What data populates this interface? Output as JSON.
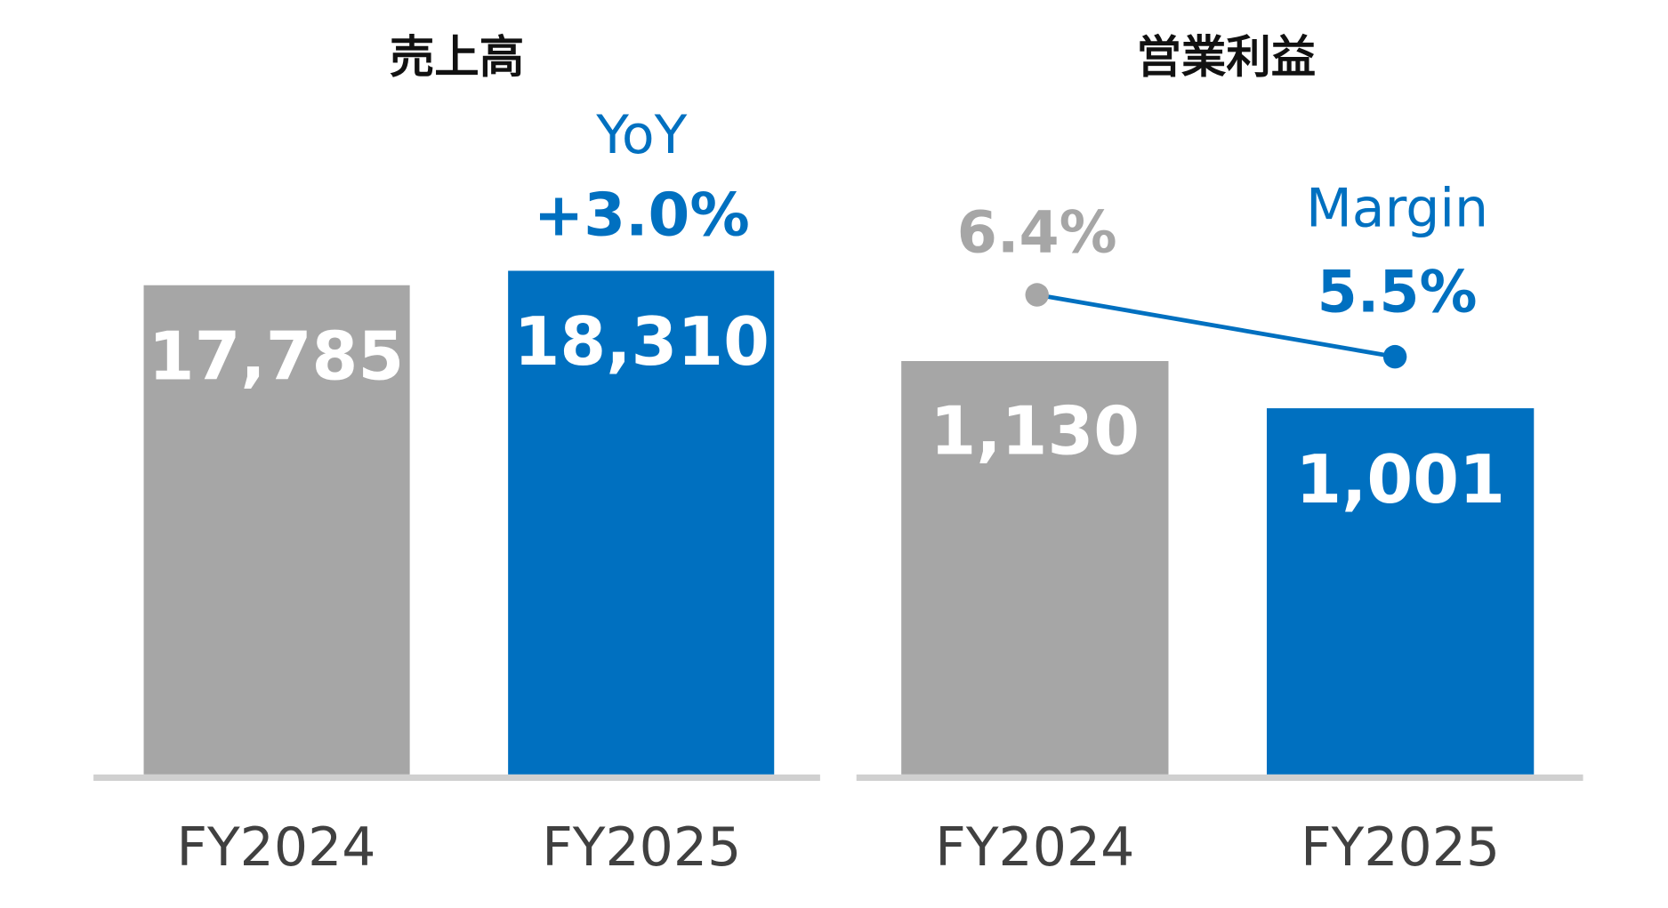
{
  "colors": {
    "prev": "#a6a6a6",
    "curr": "#0070c0",
    "axis": "#d0d0d0",
    "category": "#404040"
  },
  "chart_data": [
    {
      "type": "bar",
      "title": "売上高",
      "categories": [
        "FY2024",
        "FY2025"
      ],
      "values": [
        17785,
        18310
      ],
      "value_labels": [
        "17,785",
        "18,310"
      ],
      "annotation": {
        "label": "YoY",
        "value": "+3.0%"
      }
    },
    {
      "type": "bar",
      "title": "営業利益",
      "categories": [
        "FY2024",
        "FY2025"
      ],
      "values": [
        1130,
        1001
      ],
      "value_labels": [
        "1,130",
        "1,001"
      ],
      "margin_series": {
        "name": "Margin",
        "values": [
          6.4,
          5.5
        ],
        "labels": [
          "6.4%",
          "5.5%"
        ]
      }
    }
  ]
}
